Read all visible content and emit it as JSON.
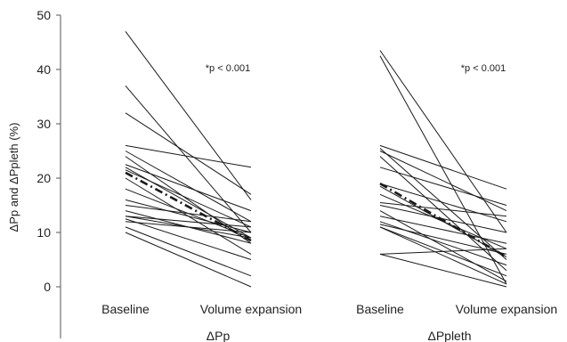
{
  "chart_data": {
    "type": "line",
    "title": "",
    "ylabel": "ΔPp and ΔPpleth (%)",
    "ylim": [
      0,
      50
    ],
    "yticks": [
      0,
      10,
      20,
      30,
      40,
      50
    ],
    "grid": false,
    "legend": "none",
    "colors": {
      "line": "#1a1a1a",
      "axis": "#555555",
      "text": "#222222"
    },
    "panels": [
      {
        "name": "ΔPp",
        "categories": [
          "Baseline",
          "Volume expansion"
        ],
        "annotation": "*p < 0.001",
        "mean": [
          21,
          8.5
        ],
        "pairs": [
          [
            47,
            16
          ],
          [
            37,
            10
          ],
          [
            32,
            17
          ],
          [
            26,
            22
          ],
          [
            25,
            12
          ],
          [
            24,
            8
          ],
          [
            22.5,
            14
          ],
          [
            22,
            9
          ],
          [
            21.5,
            11
          ],
          [
            20,
            6
          ],
          [
            18,
            9
          ],
          [
            16,
            10
          ],
          [
            15,
            12
          ],
          [
            14,
            8
          ],
          [
            13,
            11
          ],
          [
            13,
            9
          ],
          [
            12.5,
            5
          ],
          [
            12,
            10
          ],
          [
            11,
            2
          ],
          [
            10,
            0
          ]
        ]
      },
      {
        "name": "ΔPpleth",
        "categories": [
          "Baseline",
          "Volume expansion"
        ],
        "annotation": "*p < 0.001",
        "mean": [
          19,
          5.5
        ],
        "pairs": [
          [
            43.5,
            10
          ],
          [
            42.5,
            0.5
          ],
          [
            26,
            18
          ],
          [
            25.5,
            5
          ],
          [
            25,
            14
          ],
          [
            24,
            3
          ],
          [
            22,
            15
          ],
          [
            19,
            12
          ],
          [
            18.5,
            5.5
          ],
          [
            17,
            7
          ],
          [
            15.5,
            13
          ],
          [
            15,
            10
          ],
          [
            14,
            1
          ],
          [
            13,
            8
          ],
          [
            12,
            4
          ],
          [
            11.5,
            6
          ],
          [
            11,
            2
          ],
          [
            11,
            0.5
          ],
          [
            6,
            7
          ],
          [
            6,
            0
          ]
        ]
      }
    ]
  }
}
